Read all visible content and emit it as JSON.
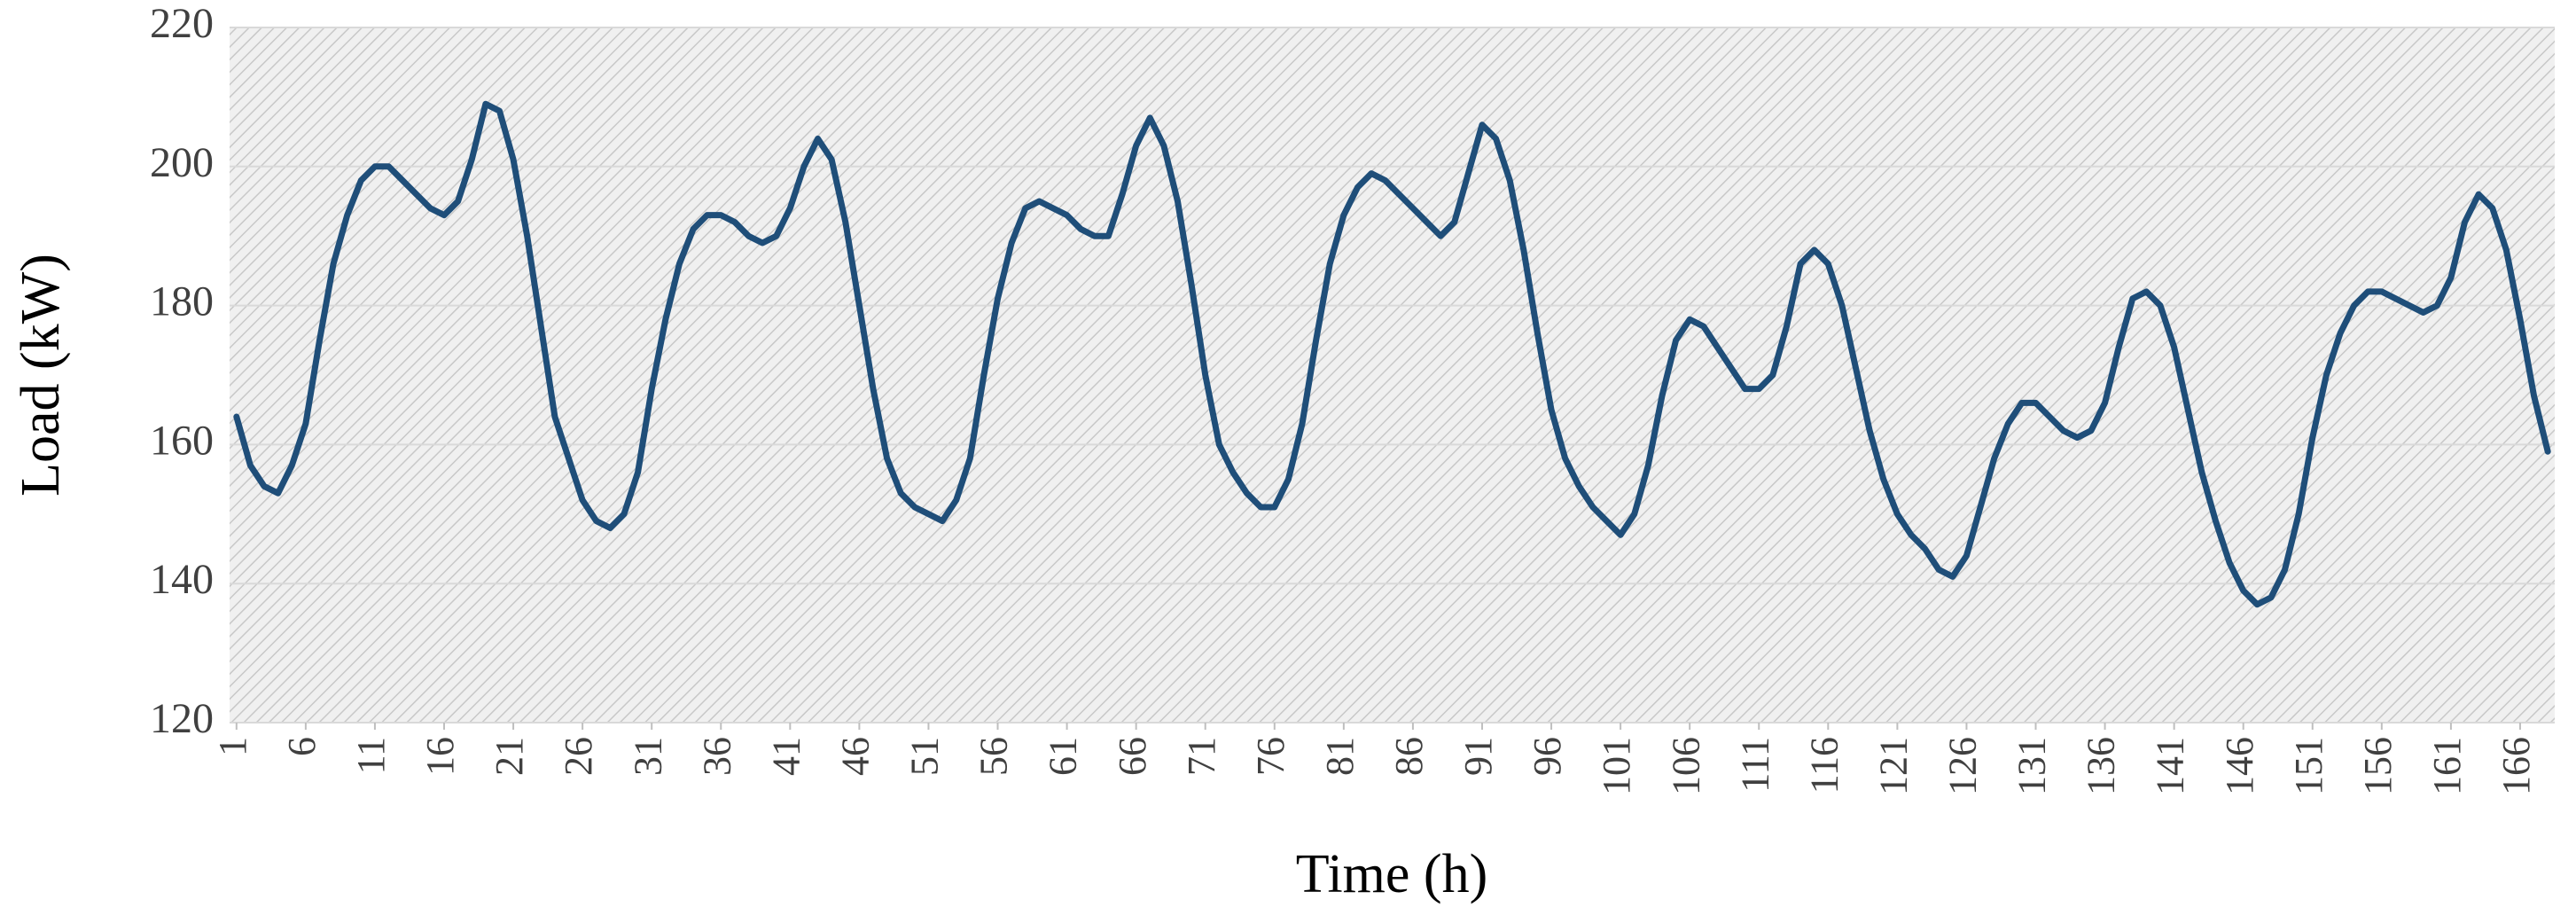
{
  "chart_data": {
    "type": "line",
    "x_label": "Time (h)",
    "y_label": "Load (kW)",
    "x": [
      1,
      2,
      3,
      4,
      5,
      6,
      7,
      8,
      9,
      10,
      11,
      12,
      13,
      14,
      15,
      16,
      17,
      18,
      19,
      20,
      21,
      22,
      23,
      24,
      25,
      26,
      27,
      28,
      29,
      30,
      31,
      32,
      33,
      34,
      35,
      36,
      37,
      38,
      39,
      40,
      41,
      42,
      43,
      44,
      45,
      46,
      47,
      48,
      49,
      50,
      51,
      52,
      53,
      54,
      55,
      56,
      57,
      58,
      59,
      60,
      61,
      62,
      63,
      64,
      65,
      66,
      67,
      68,
      69,
      70,
      71,
      72,
      73,
      74,
      75,
      76,
      77,
      78,
      79,
      80,
      81,
      82,
      83,
      84,
      85,
      86,
      87,
      88,
      89,
      90,
      91,
      92,
      93,
      94,
      95,
      96,
      97,
      98,
      99,
      100,
      101,
      102,
      103,
      104,
      105,
      106,
      107,
      108,
      109,
      110,
      111,
      112,
      113,
      114,
      115,
      116,
      117,
      118,
      119,
      120,
      121,
      122,
      123,
      124,
      125,
      126,
      127,
      128,
      129,
      130,
      131,
      132,
      133,
      134,
      135,
      136,
      137,
      138,
      139,
      140,
      141,
      142,
      143,
      144,
      145,
      146,
      147,
      148,
      149,
      150,
      151,
      152,
      153,
      154,
      155,
      156,
      157,
      158,
      159,
      160,
      161,
      162,
      163,
      164,
      165,
      166,
      167,
      168
    ],
    "series": [
      {
        "name": "Load",
        "color": "#1f4e79",
        "values": [
          164,
          157,
          154,
          153,
          157,
          163,
          175,
          186,
          193,
          198,
          200,
          200,
          198,
          196,
          194,
          193,
          195,
          201,
          209,
          208,
          201,
          190,
          177,
          164,
          158,
          152,
          149,
          148,
          150,
          156,
          168,
          178,
          186,
          191,
          193,
          193,
          192,
          190,
          189,
          190,
          194,
          200,
          204,
          201,
          192,
          180,
          168,
          158,
          153,
          151,
          150,
          149,
          152,
          158,
          170,
          181,
          189,
          194,
          195,
          194,
          193,
          191,
          190,
          190,
          196,
          203,
          207,
          203,
          195,
          183,
          170,
          160,
          156,
          153,
          151,
          151,
          155,
          163,
          175,
          186,
          193,
          197,
          199,
          198,
          196,
          194,
          192,
          190,
          192,
          199,
          206,
          204,
          198,
          188,
          176,
          165,
          158,
          154,
          151,
          149,
          147,
          150,
          157,
          167,
          175,
          178,
          177,
          174,
          171,
          168,
          168,
          170,
          177,
          186,
          188,
          186,
          180,
          171,
          162,
          155,
          150,
          147,
          145,
          142,
          141,
          144,
          151,
          158,
          163,
          166,
          166,
          164,
          162,
          161,
          162,
          166,
          174,
          181,
          182,
          180,
          174,
          165,
          156,
          149,
          143,
          139,
          137,
          138,
          142,
          150,
          161,
          170,
          176,
          180,
          182,
          182,
          181,
          180,
          179,
          180,
          184,
          192,
          196,
          194,
          188,
          178,
          167,
          159
        ]
      }
    ],
    "xlim": [
      0.5,
      168.5
    ],
    "xticks": [
      1,
      6,
      11,
      16,
      21,
      26,
      31,
      36,
      41,
      46,
      51,
      56,
      61,
      66,
      71,
      76,
      81,
      86,
      91,
      96,
      101,
      106,
      111,
      116,
      121,
      126,
      131,
      136,
      141,
      146,
      151,
      156,
      161,
      166
    ],
    "ylim": [
      120,
      220
    ],
    "yticks": [
      120,
      140,
      160,
      180,
      200,
      220
    ],
    "grid": true
  }
}
